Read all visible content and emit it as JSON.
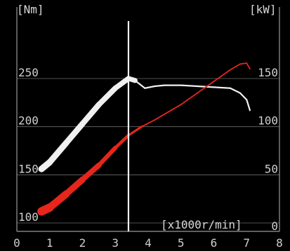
{
  "chart_data": {
    "type": "line",
    "title": "",
    "left_unit": "[Nm]",
    "right_unit": "[kW]",
    "xlabel": "[x1000r/min]",
    "x_ticks": [
      "0",
      "1",
      "2",
      "3",
      "4",
      "5",
      "6",
      "7",
      "8"
    ],
    "y_left_ticks": [
      "100",
      "150",
      "200",
      "250"
    ],
    "y_right_ticks": [
      "0",
      "50",
      "100",
      "150"
    ],
    "xlim": [
      0,
      8
    ],
    "ylim_left": [
      100,
      250
    ],
    "ylim_right": [
      0,
      150
    ],
    "grid": true,
    "marker_x": 3.4,
    "colors": {
      "torque": "#f0f0f0",
      "power": "#e6261c",
      "grid": "#9a9a9a",
      "background": "#000000"
    },
    "series": [
      {
        "key": "torque",
        "axis": "left",
        "x": [
          0.75,
          1.0,
          1.5,
          2.0,
          2.5,
          3.0,
          3.4,
          3.6,
          3.9,
          4.2,
          4.5,
          5.0,
          5.5,
          6.0,
          6.5,
          6.8,
          7.0,
          7.1
        ],
        "y": [
          156,
          163,
          183,
          203,
          223,
          240,
          250,
          248,
          240,
          242,
          243,
          243,
          242,
          241,
          240,
          235,
          228,
          217
        ]
      },
      {
        "key": "power",
        "axis": "right",
        "x": [
          0.75,
          1.0,
          1.5,
          2.0,
          2.5,
          3.0,
          3.4,
          3.8,
          4.2,
          4.6,
          5.0,
          5.5,
          6.0,
          6.5,
          6.8,
          7.0,
          7.1
        ],
        "y": [
          12,
          16,
          30,
          45,
          60,
          78,
          91,
          100,
          107,
          115,
          123,
          135,
          147,
          159,
          165,
          166,
          160
        ]
      }
    ]
  }
}
